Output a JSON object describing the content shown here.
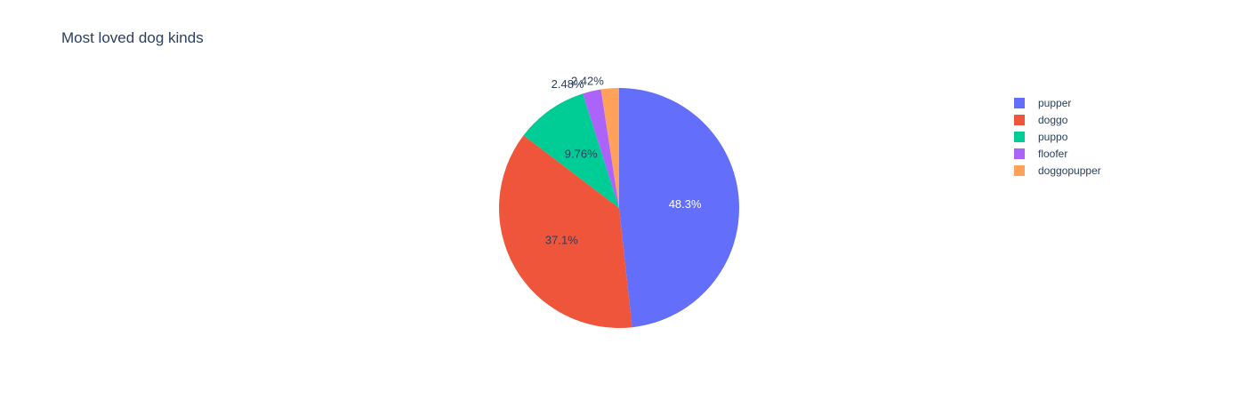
{
  "chart_data": {
    "type": "pie",
    "title": "Most loved dog kinds",
    "slices": [
      {
        "label": "pupper",
        "percent": 48.3,
        "text": "48.3%",
        "color": "#636efa"
      },
      {
        "label": "doggo",
        "percent": 37.1,
        "text": "37.1%",
        "color": "#ef553b"
      },
      {
        "label": "puppo",
        "percent": 9.76,
        "text": "9.76%",
        "color": "#00cc96"
      },
      {
        "label": "floofer",
        "percent": 2.48,
        "text": "2.48%",
        "color": "#ab63fa"
      },
      {
        "label": "doggopupper",
        "percent": 2.42,
        "text": "2.42%",
        "color": "#ffa15a"
      }
    ],
    "legend_position": "top-right",
    "direction": "clockwise",
    "start_angle": "top"
  }
}
